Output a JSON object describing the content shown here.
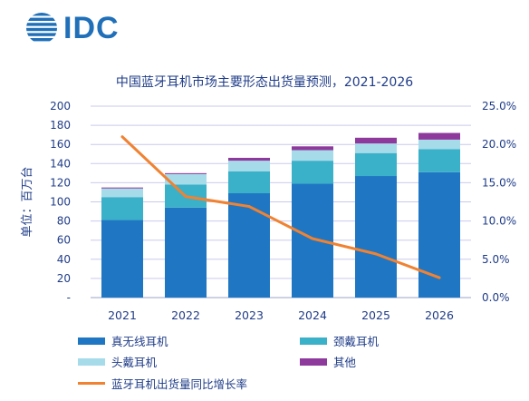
{
  "logo": {
    "text": "IDC",
    "color": "#1f6fb9"
  },
  "chart_data": {
    "type": "bar",
    "stacked": true,
    "title": "中国蓝牙耳机市场主要形态出货量预测，2021-2026",
    "ylabel": "单位：百万台",
    "categories": [
      "2021",
      "2022",
      "2023",
      "2024",
      "2025",
      "2026"
    ],
    "ylim": [
      0,
      200
    ],
    "yticks": [
      "-",
      "20",
      "40",
      "60",
      "80",
      "100",
      "120",
      "140",
      "160",
      "180",
      "200"
    ],
    "y2lim": [
      0,
      25
    ],
    "y2ticks": [
      "0.0%",
      "5.0%",
      "10.0%",
      "15.0%",
      "20.0%",
      "25.0%"
    ],
    "grid": true,
    "legend_position": "bottom",
    "series": [
      {
        "name": "真无线耳机",
        "color": "#1f77c4",
        "values": [
          81,
          94,
          109,
          119,
          127,
          131
        ]
      },
      {
        "name": "颈戴耳机",
        "color": "#3bb0c9",
        "values": [
          24,
          24,
          23,
          24,
          24,
          24
        ]
      },
      {
        "name": "头戴耳机",
        "color": "#a6dbea",
        "values": [
          9,
          11,
          11,
          11,
          10,
          10
        ]
      },
      {
        "name": "其他",
        "color": "#8e3a9c",
        "values": [
          1,
          1,
          3,
          4,
          6,
          7
        ]
      }
    ],
    "line_series": {
      "name": "蓝牙耳机出货量同比增长率",
      "color": "#f08232",
      "axis": "right",
      "values": [
        21.0,
        13.2,
        11.9,
        7.7,
        5.7,
        2.6
      ]
    }
  }
}
